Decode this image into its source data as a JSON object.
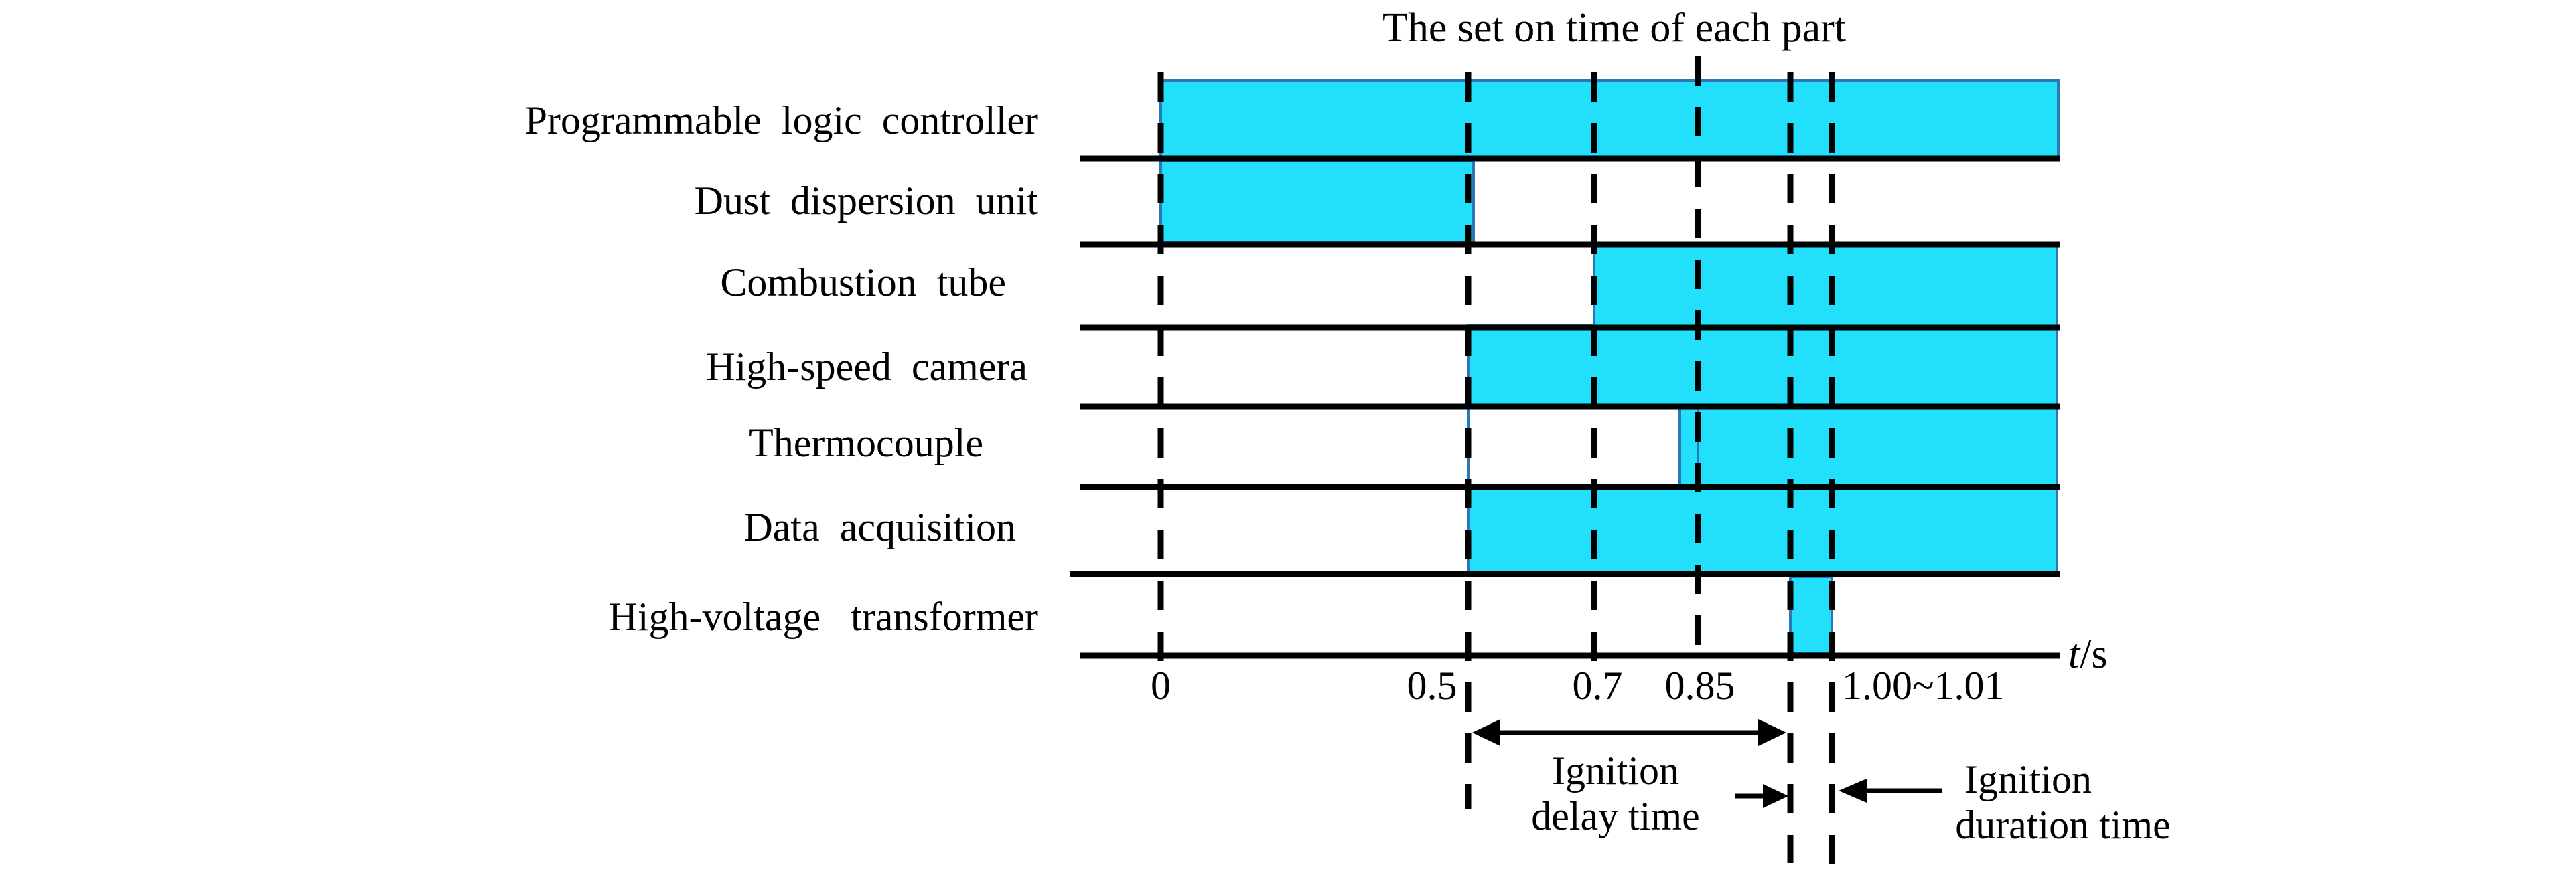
{
  "title": "The set on time of each part",
  "colors": {
    "bar_fill": "#22e0fc",
    "bar_stroke": "#2b78b8",
    "lines": "#000000"
  },
  "rows": [
    {
      "label": "Programmable  logic  controller",
      "start": "0",
      "end": "end"
    },
    {
      "label": "Dust  dispersion  unit",
      "start": "0",
      "end": "0.5"
    },
    {
      "label": "Combustion  tube",
      "start": "0.7",
      "end": "end"
    },
    {
      "label": "High-speed  camera",
      "start": "0.5",
      "end": "end"
    },
    {
      "label": "Thermocouple",
      "start": "0.85",
      "end": "end"
    },
    {
      "label": "Data  acquisition",
      "start": "0.5",
      "end": "end"
    },
    {
      "label": "High-voltage   transformer",
      "start": "1.00",
      "end": "1.01"
    }
  ],
  "ticks": [
    "0",
    "0.5",
    "0.7",
    "0.85",
    "1.00~1.01"
  ],
  "axis": {
    "symbol": "t",
    "unit": "/s"
  },
  "annotations": {
    "delay": [
      "Ignition",
      "delay time"
    ],
    "duration": [
      "Ignition",
      "duration time"
    ]
  }
}
